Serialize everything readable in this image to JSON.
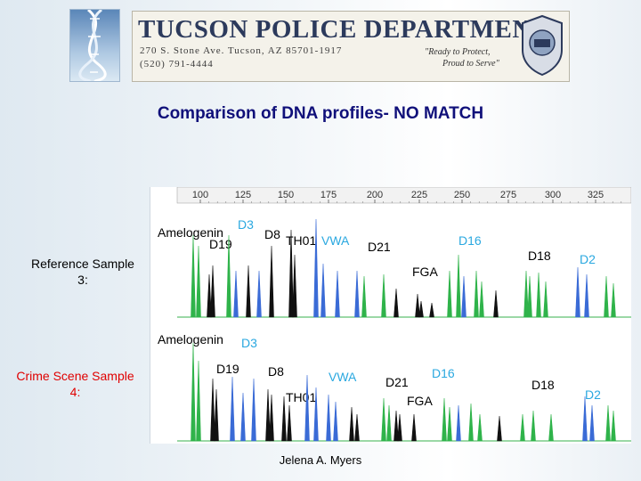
{
  "header": {
    "department": "TUCSON POLICE DEPARTMENT",
    "address": "270 S. Stone Ave.  Tucson, AZ  85701-1917",
    "phone": "(520) 791-4444",
    "motto_line1": "\"Ready to Protect,",
    "motto_line2": "Proud to Serve\""
  },
  "title": "Comparison of DNA profiles- NO MATCH",
  "rows": {
    "reference": {
      "label_line1": "Reference Sample",
      "label_line2": "3:"
    },
    "crime": {
      "label_line1": "Crime Scene Sample",
      "label_line2": "4:"
    }
  },
  "ruler_ticks": [
    "100",
    "125",
    "150",
    "175",
    "200",
    "225",
    "250",
    "275",
    "300",
    "325"
  ],
  "loci_reference": [
    {
      "name": "Amelogenin",
      "color": "#000000"
    },
    {
      "name": "D3",
      "color": "#2aa8e0"
    },
    {
      "name": "D8",
      "color": "#000000"
    },
    {
      "name": "D19",
      "color": "#000000"
    },
    {
      "name": "TH01",
      "color": "#000000"
    },
    {
      "name": "VWA",
      "color": "#2aa8e0"
    },
    {
      "name": "D21",
      "color": "#000000"
    },
    {
      "name": "D16",
      "color": "#2aa8e0"
    },
    {
      "name": "FGA",
      "color": "#000000"
    },
    {
      "name": "D18",
      "color": "#000000"
    },
    {
      "name": "D2",
      "color": "#2aa8e0"
    }
  ],
  "loci_crime": [
    {
      "name": "Amelogenin",
      "color": "#000000"
    },
    {
      "name": "D3",
      "color": "#2aa8e0"
    },
    {
      "name": "D19",
      "color": "#000000"
    },
    {
      "name": "D8",
      "color": "#000000"
    },
    {
      "name": "VWA",
      "color": "#2aa8e0"
    },
    {
      "name": "TH01",
      "color": "#000000"
    },
    {
      "name": "D21",
      "color": "#000000"
    },
    {
      "name": "D16",
      "color": "#2aa8e0"
    },
    {
      "name": "FGA",
      "color": "#000000"
    },
    {
      "name": "D18",
      "color": "#000000"
    },
    {
      "name": "D2",
      "color": "#2aa8e0"
    }
  ],
  "author": "Jelena A. Myers"
}
